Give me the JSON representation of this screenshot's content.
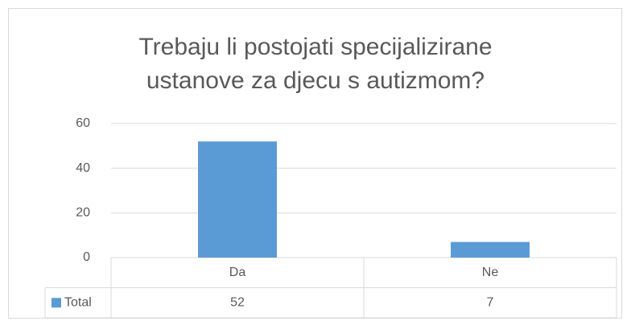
{
  "chart_data": {
    "type": "bar",
    "title": "Trebaju li postojati specijalizirane ustanove za djecu s autizmom?",
    "categories": [
      "Da",
      "Ne"
    ],
    "series": [
      {
        "name": "Total",
        "color": "#5b9bd5",
        "values": [
          52,
          7
        ]
      }
    ],
    "ylim": [
      0,
      60
    ],
    "yticks": [
      0,
      20,
      40,
      60
    ],
    "grid": true
  }
}
